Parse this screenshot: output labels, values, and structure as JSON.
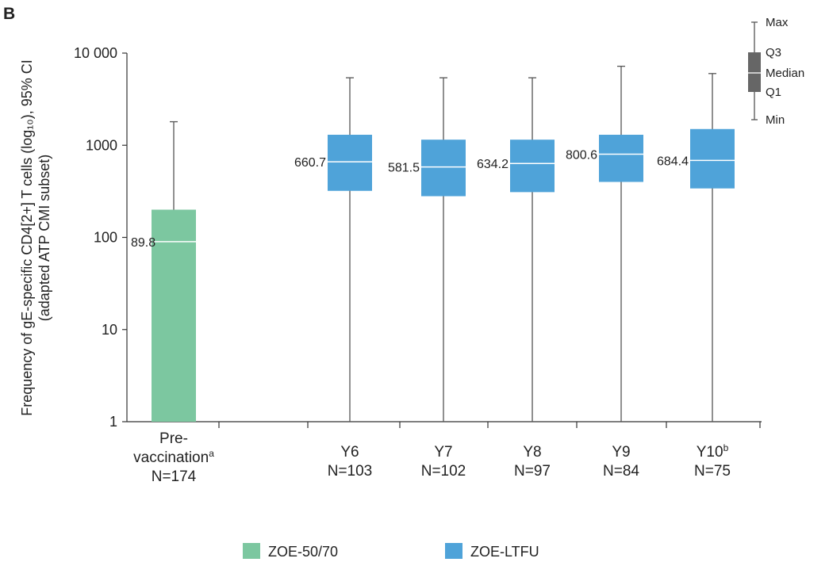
{
  "chart_data": {
    "type": "box",
    "panel_label": "B",
    "ylabel_line1": "Frequency of gE-specific CD4[2+] T cells (log₁₀), 95% CI",
    "ylabel_line2": "(adapted ATP CMI subset)",
    "yscale": "log",
    "ylim": [
      1,
      10000
    ],
    "yticks": [
      {
        "value": 1,
        "label": "1"
      },
      {
        "value": 10,
        "label": "10"
      },
      {
        "value": 100,
        "label": "100"
      },
      {
        "value": 1000,
        "label": "1000"
      },
      {
        "value": 10000,
        "label": "10 000"
      }
    ],
    "categories": [
      {
        "lines": [
          "Pre-",
          "vaccination",
          "N=174"
        ],
        "sup": "a"
      },
      {
        "lines": [
          "Y6",
          "N=103"
        ],
        "sup": ""
      },
      {
        "lines": [
          "Y7",
          "N=102"
        ],
        "sup": ""
      },
      {
        "lines": [
          "Y8",
          "N=97"
        ],
        "sup": ""
      },
      {
        "lines": [
          "Y9",
          "N=84"
        ],
        "sup": ""
      },
      {
        "lines": [
          "Y10",
          "N=75"
        ],
        "sup": "b"
      }
    ],
    "series": [
      {
        "name": "ZOE-50/70",
        "color": "#7cc7a0",
        "boxes": [
          {
            "category_index": 0,
            "min": 1,
            "q1": 1,
            "median": 89.8,
            "q3": 200,
            "max": 1800,
            "label": "89.8"
          }
        ]
      },
      {
        "name": "ZOE-LTFU",
        "color": "#4fa3d9",
        "boxes": [
          {
            "category_index": 1,
            "min": 1,
            "q1": 320,
            "median": 660.7,
            "q3": 1300,
            "max": 5400,
            "label": "660.7"
          },
          {
            "category_index": 2,
            "min": 1,
            "q1": 280,
            "median": 581.5,
            "q3": 1150,
            "max": 5400,
            "label": "581.5"
          },
          {
            "category_index": 3,
            "min": 1,
            "q1": 310,
            "median": 634.2,
            "q3": 1150,
            "max": 5400,
            "label": "634.2"
          },
          {
            "category_index": 4,
            "min": 1,
            "q1": 400,
            "median": 800.6,
            "q3": 1300,
            "max": 7200,
            "label": "800.6"
          },
          {
            "category_index": 5,
            "min": 1,
            "q1": 340,
            "median": 684.4,
            "q3": 1500,
            "max": 6000,
            "label": "684.4"
          }
        ]
      }
    ],
    "box_key": {
      "color": "#666666",
      "labels": [
        "Max",
        "Q3",
        "Median",
        "Q1",
        "Min"
      ]
    },
    "legend": {
      "placement": "bottom",
      "items": [
        {
          "name": "ZOE-50/70",
          "color": "#7cc7a0"
        },
        {
          "name": "ZOE-LTFU",
          "color": "#4fa3d9"
        }
      ]
    },
    "grid": false
  }
}
